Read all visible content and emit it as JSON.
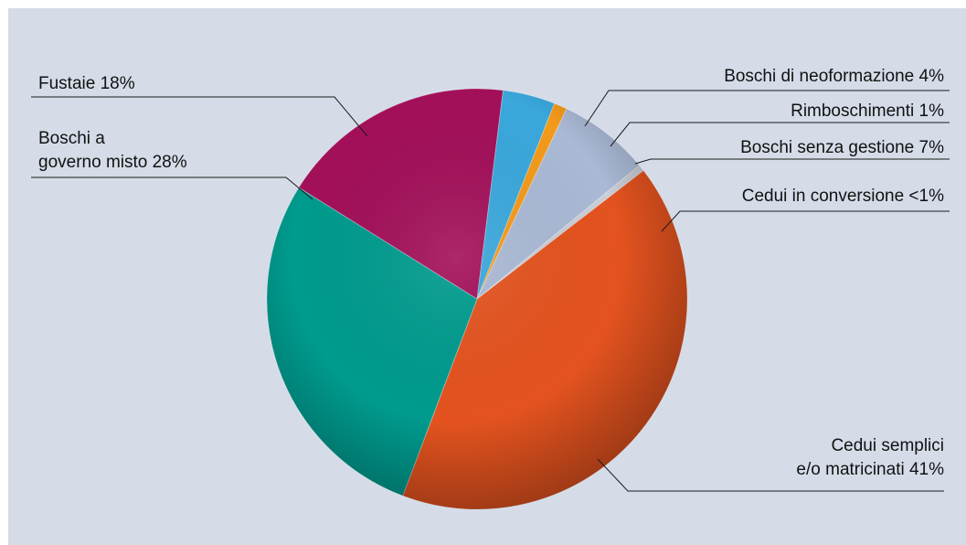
{
  "chart_data": {
    "type": "pie",
    "title": "",
    "slices": [
      {
        "label_lines": [
          "Cedui semplici",
          "e/o matricinati 41%"
        ],
        "value": 41,
        "color": "#e4531f"
      },
      {
        "label_lines": [
          "Boschi a",
          "governo misto 28%"
        ],
        "value": 28,
        "color": "#009b8e"
      },
      {
        "label_lines": [
          "Fustaie 18%"
        ],
        "value": 18,
        "color": "#a3105a"
      },
      {
        "label_lines": [
          "Boschi di neoformazione 4%"
        ],
        "value": 4,
        "color": "#3aa8dc"
      },
      {
        "label_lines": [
          "Rimboschimenti 1%"
        ],
        "value": 1,
        "color": "#f39a1b"
      },
      {
        "label_lines": [
          "Boschi senza gestione 7%"
        ],
        "value": 7,
        "color": "#aab9d5"
      },
      {
        "label_lines": [
          "Cedui in conversione <1%"
        ],
        "value": 0.5,
        "color": "#c8cdd6"
      }
    ]
  }
}
